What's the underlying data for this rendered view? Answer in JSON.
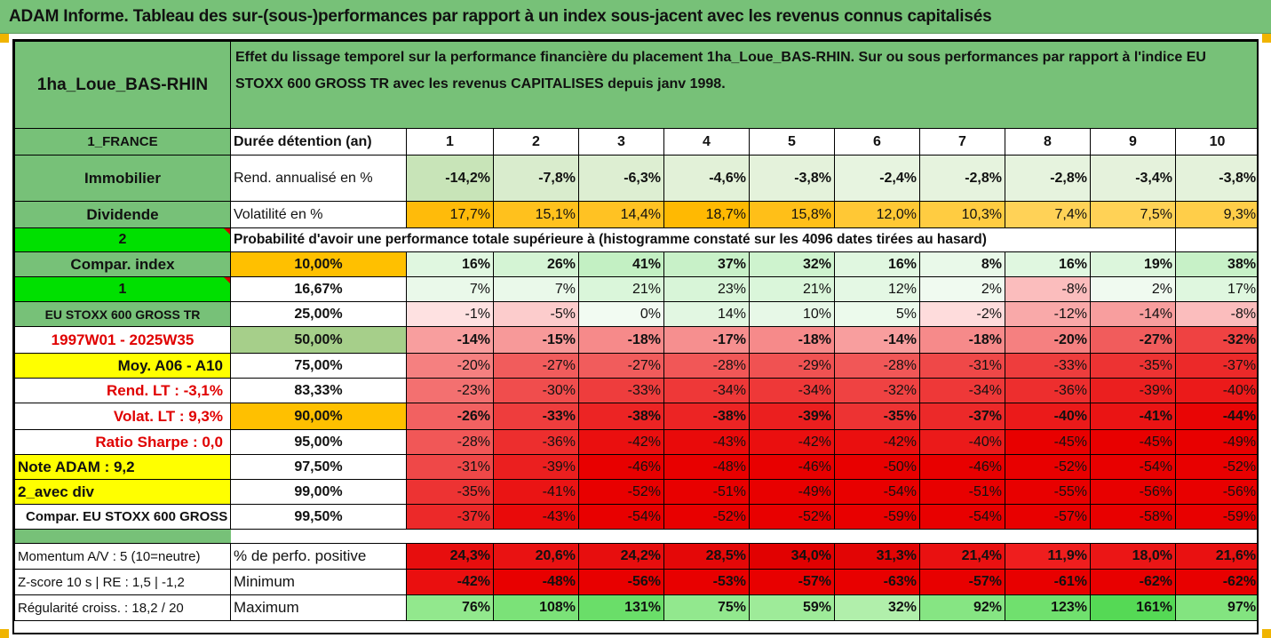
{
  "title": "ADAM Informe. Tableau des sur-(sous-)performances par rapport à un index sous-jacent avec les revenus connus capitalisés",
  "asset_name": "1ha_Loue_BAS-RHIN",
  "description": "Effet du lissage temporel sur la performance financière du placement 1ha_Loue_BAS-RHIN. Sur ou sous performances par rapport à l'indice EU STOXX 600 GROSS TR avec les revenus CAPITALISES depuis janv 1998.",
  "header_row": {
    "left": "1_FRANCE",
    "label": "Durée détention (an)",
    "years": [
      "1",
      "2",
      "3",
      "4",
      "5",
      "6",
      "7",
      "8",
      "9",
      "10"
    ]
  },
  "rend_row": {
    "left": "Immobilier",
    "label": "Rend. annualisé en %",
    "values": [
      "-14,2%",
      "-7,8%",
      "-6,3%",
      "-4,6%",
      "-3,8%",
      "-2,4%",
      "-2,8%",
      "-2,8%",
      "-3,4%",
      "-3,8%"
    ]
  },
  "vol_row": {
    "left": "Dividende",
    "label": "Volatilité en %",
    "values": [
      "17,7%",
      "15,1%",
      "14,4%",
      "18,7%",
      "15,8%",
      "12,0%",
      "10,3%",
      "7,4%",
      "7,5%",
      "9,3%"
    ]
  },
  "prob_row": {
    "left": "2",
    "label": "Probabilité d'avoir une performance totale supérieure à (histogramme constaté sur les 4096 dates tirées au hasard)"
  },
  "quantile_rows": [
    {
      "left": "Compar. index",
      "pct": "10,00%",
      "values": [
        "16%",
        "26%",
        "41%",
        "37%",
        "32%",
        "16%",
        "8%",
        "16%",
        "19%",
        "38%"
      ]
    },
    {
      "left": "1",
      "pct": "16,67%",
      "values": [
        "7%",
        "7%",
        "21%",
        "23%",
        "21%",
        "12%",
        "2%",
        "-8%",
        "2%",
        "17%"
      ]
    },
    {
      "left": "EU STOXX 600 GROSS TR",
      "pct": "25,00%",
      "values": [
        "-1%",
        "-5%",
        "0%",
        "14%",
        "10%",
        "5%",
        "-2%",
        "-12%",
        "-14%",
        "-8%"
      ]
    },
    {
      "left": "1997W01 - 2025W35",
      "pct": "50,00%",
      "values": [
        "-14%",
        "-15%",
        "-18%",
        "-17%",
        "-18%",
        "-14%",
        "-18%",
        "-20%",
        "-27%",
        "-32%"
      ]
    },
    {
      "left": "Moy. A06 - A10",
      "pct": "75,00%",
      "values": [
        "-20%",
        "-27%",
        "-27%",
        "-28%",
        "-29%",
        "-28%",
        "-31%",
        "-33%",
        "-35%",
        "-37%"
      ]
    },
    {
      "left": "Rend. LT :   -3,1%",
      "pct": "83,33%",
      "values": [
        "-23%",
        "-30%",
        "-33%",
        "-34%",
        "-34%",
        "-32%",
        "-34%",
        "-36%",
        "-39%",
        "-40%"
      ]
    },
    {
      "left": "Volat. LT :   9,3%",
      "pct": "90,00%",
      "values": [
        "-26%",
        "-33%",
        "-38%",
        "-38%",
        "-39%",
        "-35%",
        "-37%",
        "-40%",
        "-41%",
        "-44%"
      ]
    },
    {
      "left": "Ratio Sharpe :   0,0",
      "pct": "95,00%",
      "values": [
        "-28%",
        "-36%",
        "-42%",
        "-43%",
        "-42%",
        "-42%",
        "-40%",
        "-45%",
        "-45%",
        "-49%"
      ]
    },
    {
      "left": "Note ADAM : 9,2",
      "pct": "97,50%",
      "values": [
        "-31%",
        "-39%",
        "-46%",
        "-48%",
        "-46%",
        "-50%",
        "-46%",
        "-52%",
        "-54%",
        "-52%"
      ]
    },
    {
      "left": "2_avec div",
      "pct": "99,00%",
      "values": [
        "-35%",
        "-41%",
        "-52%",
        "-51%",
        "-49%",
        "-54%",
        "-51%",
        "-55%",
        "-56%",
        "-56%"
      ]
    },
    {
      "left": "Compar. EU STOXX 600 GROSS TR",
      "pct": "99,50%",
      "values": [
        "-37%",
        "-43%",
        "-54%",
        "-52%",
        "-52%",
        "-59%",
        "-54%",
        "-57%",
        "-58%",
        "-59%"
      ]
    }
  ],
  "stats_rows": [
    {
      "left": "Momentum A/V : 5 (10=neutre)",
      "label": "% de perfo. positive",
      "values": [
        "24,3%",
        "20,6%",
        "24,2%",
        "28,5%",
        "34,0%",
        "31,3%",
        "21,4%",
        "11,9%",
        "18,0%",
        "21,6%"
      ]
    },
    {
      "left": "Z-score 10 s | RE : 1,5 | -1,2",
      "label": "Minimum",
      "values": [
        "-42%",
        "-48%",
        "-56%",
        "-53%",
        "-57%",
        "-63%",
        "-57%",
        "-61%",
        "-62%",
        "-62%"
      ]
    },
    {
      "left": "Régularité croiss. : 18,2 / 20",
      "label": "Maximum",
      "values": [
        "76%",
        "108%",
        "131%",
        "75%",
        "59%",
        "32%",
        "92%",
        "123%",
        "161%",
        "97%"
      ]
    }
  ],
  "colors": {
    "header_green": "#77c178",
    "bright_green": "#00e000",
    "yellow": "#ffff00",
    "orange": "#ffc000",
    "red_text": "#e00000",
    "accent_corner": "#f0b400"
  }
}
